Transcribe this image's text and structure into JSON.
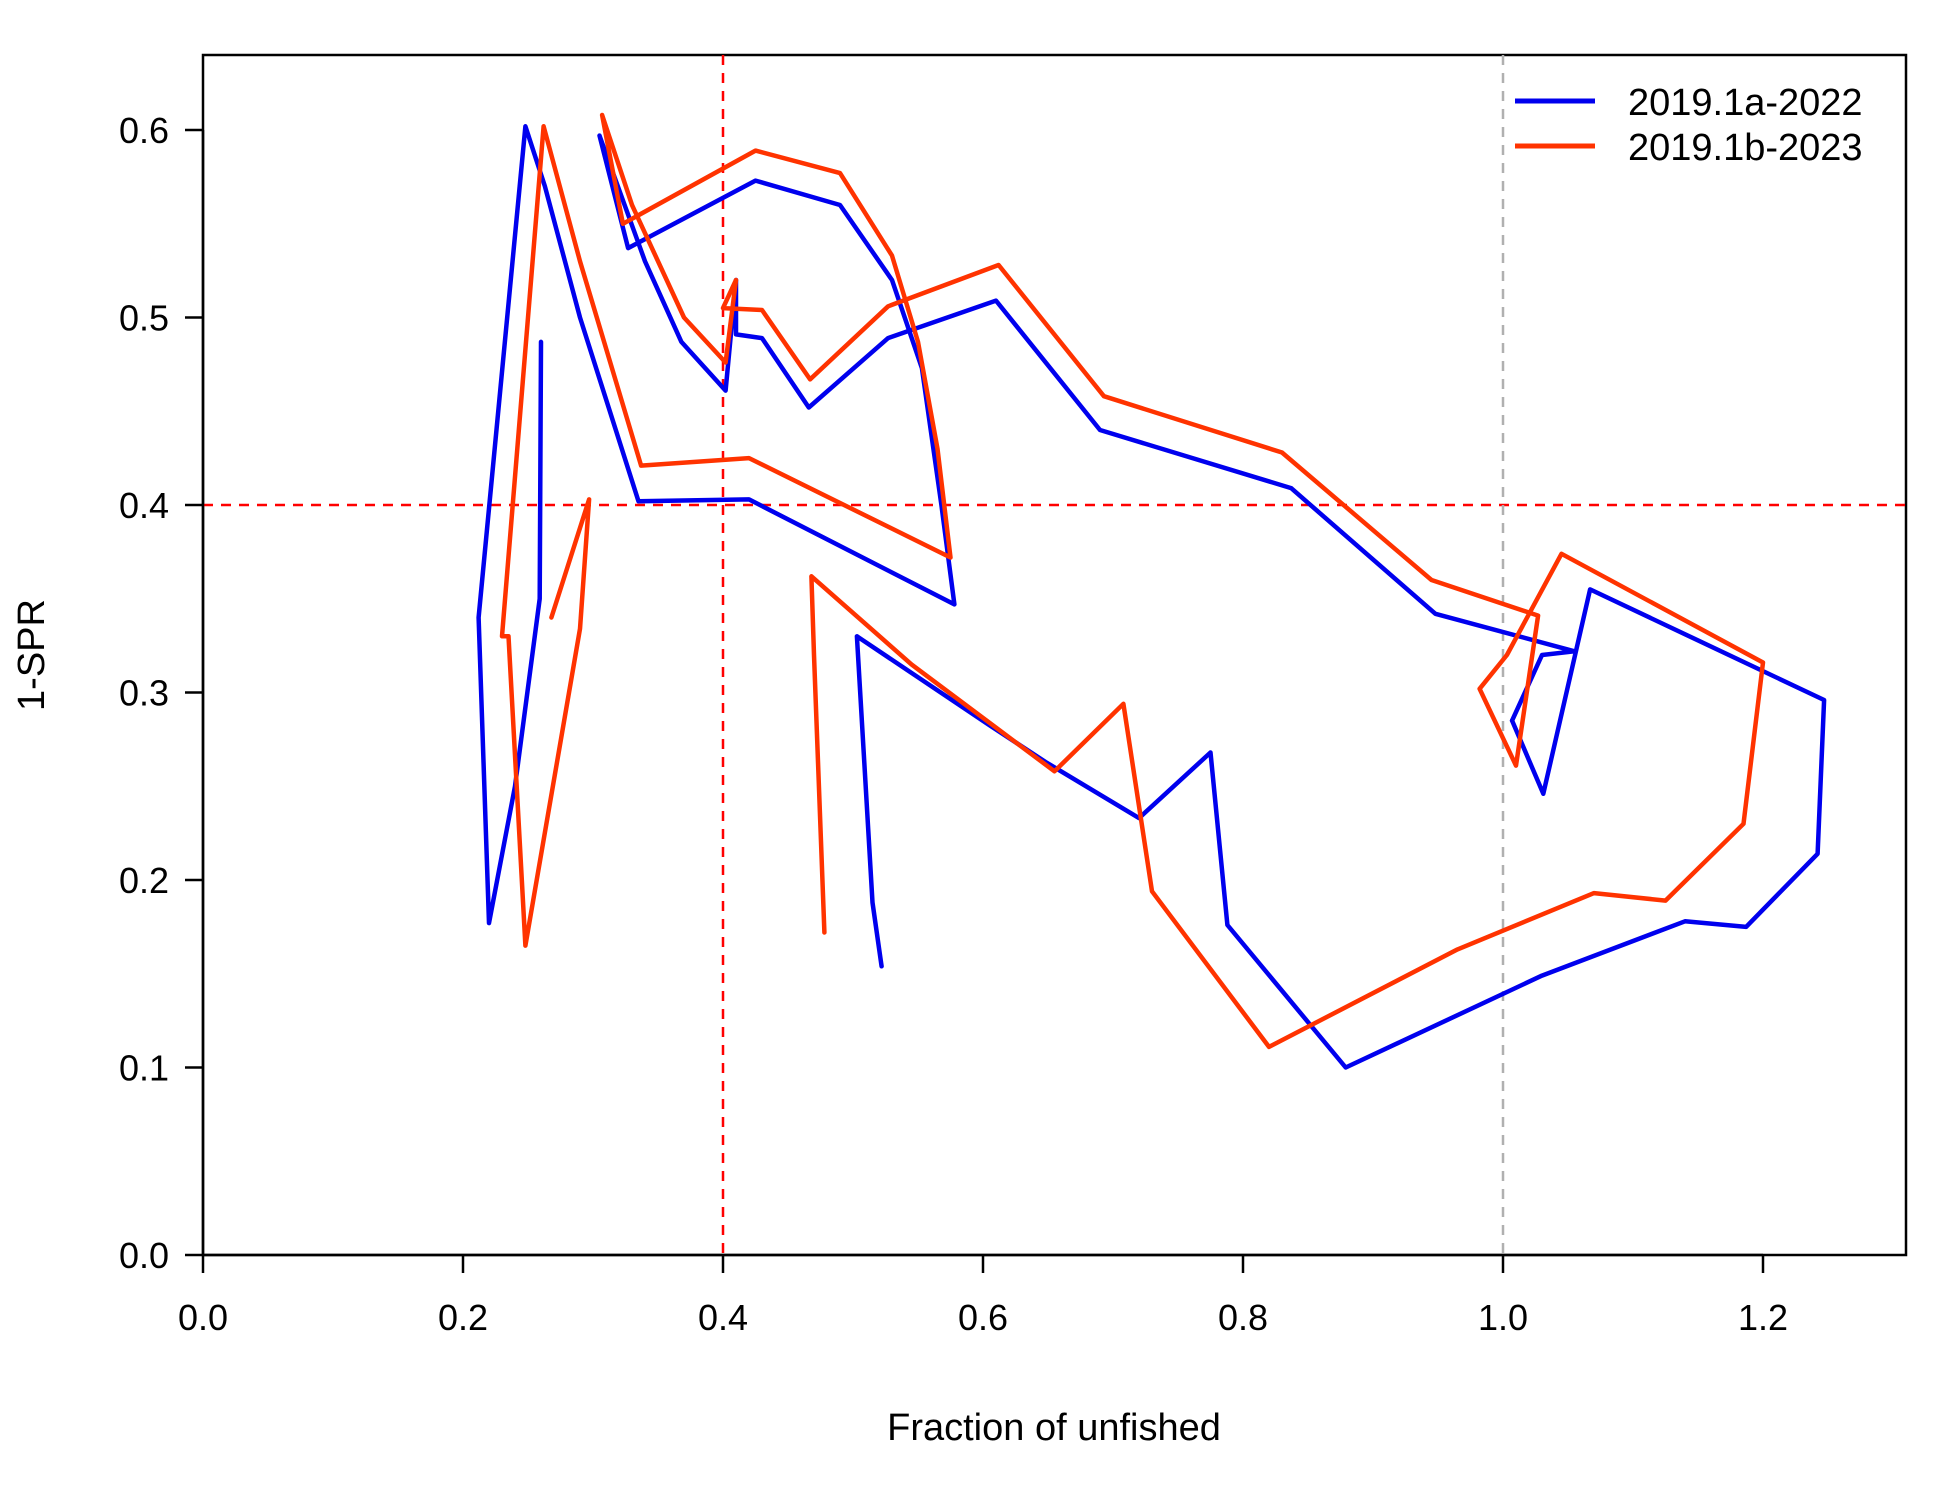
{
  "chart_data": {
    "type": "line",
    "title": "",
    "xlabel": "Fraction of unfished",
    "ylabel": "1-SPR",
    "xlim": [
      0.0,
      1.31
    ],
    "ylim": [
      0.0,
      0.64
    ],
    "x_ticks": [
      0.0,
      0.2,
      0.4,
      0.6,
      0.8,
      1.0,
      1.2
    ],
    "y_ticks": [
      0.0,
      0.1,
      0.2,
      0.3,
      0.4,
      0.5,
      0.6
    ],
    "x_tick_labels": [
      "0.0",
      "0.2",
      "0.4",
      "0.6",
      "0.8",
      "1.0",
      "1.2"
    ],
    "y_tick_labels": [
      "0.0",
      "0.1",
      "0.2",
      "0.3",
      "0.4",
      "0.5",
      "0.6"
    ],
    "grid": false,
    "legend_position": "top-right",
    "reference_lines": [
      {
        "orientation": "vertical",
        "value": 0.4,
        "color": "#ff0000",
        "style": "dashed"
      },
      {
        "orientation": "horizontal",
        "value": 0.4,
        "color": "#ff0000",
        "style": "dashed"
      },
      {
        "orientation": "vertical",
        "value": 1.0,
        "color": "#b0b0b0",
        "style": "dashed"
      }
    ],
    "series": [
      {
        "name": "2019.1a-2022",
        "color": "#0000ee",
        "points": [
          [
            1.007,
            0.285
          ],
          [
            1.031,
            0.246
          ],
          [
            1.067,
            0.355
          ],
          [
            1.247,
            0.296
          ],
          [
            1.242,
            0.214
          ],
          [
            1.187,
            0.175
          ],
          [
            1.14,
            0.178
          ],
          [
            1.03,
            0.149
          ],
          [
            0.879,
            0.1
          ],
          [
            0.788,
            0.176
          ],
          [
            0.775,
            0.268
          ],
          [
            0.72,
            0.233
          ],
          [
            0.648,
            0.263
          ],
          [
            0.604,
            0.283
          ],
          [
            0.503,
            0.33
          ],
          [
            0.515,
            0.188
          ],
          [
            0.522,
            0.154
          ]
        ],
        "points_continued": [
          [
            0.26,
            0.487
          ],
          [
            0.259,
            0.35
          ],
          [
            0.24,
            0.25
          ],
          [
            0.22,
            0.177
          ],
          [
            0.212,
            0.34
          ],
          [
            0.248,
            0.602
          ],
          [
            0.263,
            0.57
          ],
          [
            0.29,
            0.5
          ],
          [
            0.335,
            0.402
          ],
          [
            0.42,
            0.403
          ],
          [
            0.578,
            0.347
          ],
          [
            0.568,
            0.4
          ],
          [
            0.553,
            0.473
          ],
          [
            0.53,
            0.52
          ],
          [
            0.49,
            0.56
          ],
          [
            0.425,
            0.573
          ],
          [
            0.327,
            0.537
          ],
          [
            0.305,
            0.597
          ],
          [
            0.34,
            0.53
          ],
          [
            0.368,
            0.487
          ],
          [
            0.402,
            0.461
          ],
          [
            0.41,
            0.52
          ],
          [
            0.41,
            0.491
          ],
          [
            0.43,
            0.489
          ],
          [
            0.466,
            0.452
          ],
          [
            0.527,
            0.489
          ],
          [
            0.61,
            0.509
          ],
          [
            0.69,
            0.44
          ],
          [
            0.837,
            0.409
          ],
          [
            0.948,
            0.342
          ],
          [
            1.055,
            0.322
          ],
          [
            1.03,
            0.32
          ],
          [
            1.007,
            0.285
          ]
        ]
      },
      {
        "name": "2019.1b-2023",
        "color": "#ff3300",
        "points": [
          [
            0.268,
            0.34
          ],
          [
            0.297,
            0.403
          ],
          [
            0.29,
            0.334
          ],
          [
            0.248,
            0.165
          ],
          [
            0.235,
            0.33
          ],
          [
            0.23,
            0.33
          ],
          [
            0.262,
            0.602
          ],
          [
            0.29,
            0.53
          ],
          [
            0.337,
            0.421
          ],
          [
            0.42,
            0.425
          ],
          [
            0.575,
            0.372
          ],
          [
            0.565,
            0.43
          ],
          [
            0.55,
            0.487
          ],
          [
            0.53,
            0.533
          ],
          [
            0.49,
            0.577
          ],
          [
            0.425,
            0.589
          ],
          [
            0.323,
            0.55
          ],
          [
            0.307,
            0.608
          ],
          [
            0.33,
            0.56
          ],
          [
            0.37,
            0.5
          ],
          [
            0.402,
            0.476
          ],
          [
            0.41,
            0.52
          ],
          [
            0.4,
            0.505
          ],
          [
            0.43,
            0.504
          ],
          [
            0.467,
            0.467
          ],
          [
            0.527,
            0.506
          ],
          [
            0.612,
            0.528
          ],
          [
            0.693,
            0.458
          ],
          [
            0.83,
            0.428
          ],
          [
            0.945,
            0.36
          ],
          [
            1.027,
            0.341
          ],
          [
            1.01,
            0.261
          ],
          [
            0.982,
            0.302
          ],
          [
            1.003,
            0.32
          ],
          [
            1.045,
            0.374
          ],
          [
            1.2,
            0.316
          ],
          [
            1.185,
            0.23
          ],
          [
            1.125,
            0.189
          ],
          [
            1.07,
            0.193
          ],
          [
            0.965,
            0.163
          ],
          [
            0.82,
            0.111
          ],
          [
            0.73,
            0.194
          ],
          [
            0.708,
            0.294
          ],
          [
            0.655,
            0.258
          ],
          [
            0.545,
            0.315
          ],
          [
            0.468,
            0.362
          ],
          [
            0.47,
            0.32
          ],
          [
            0.478,
            0.172
          ]
        ]
      }
    ]
  }
}
